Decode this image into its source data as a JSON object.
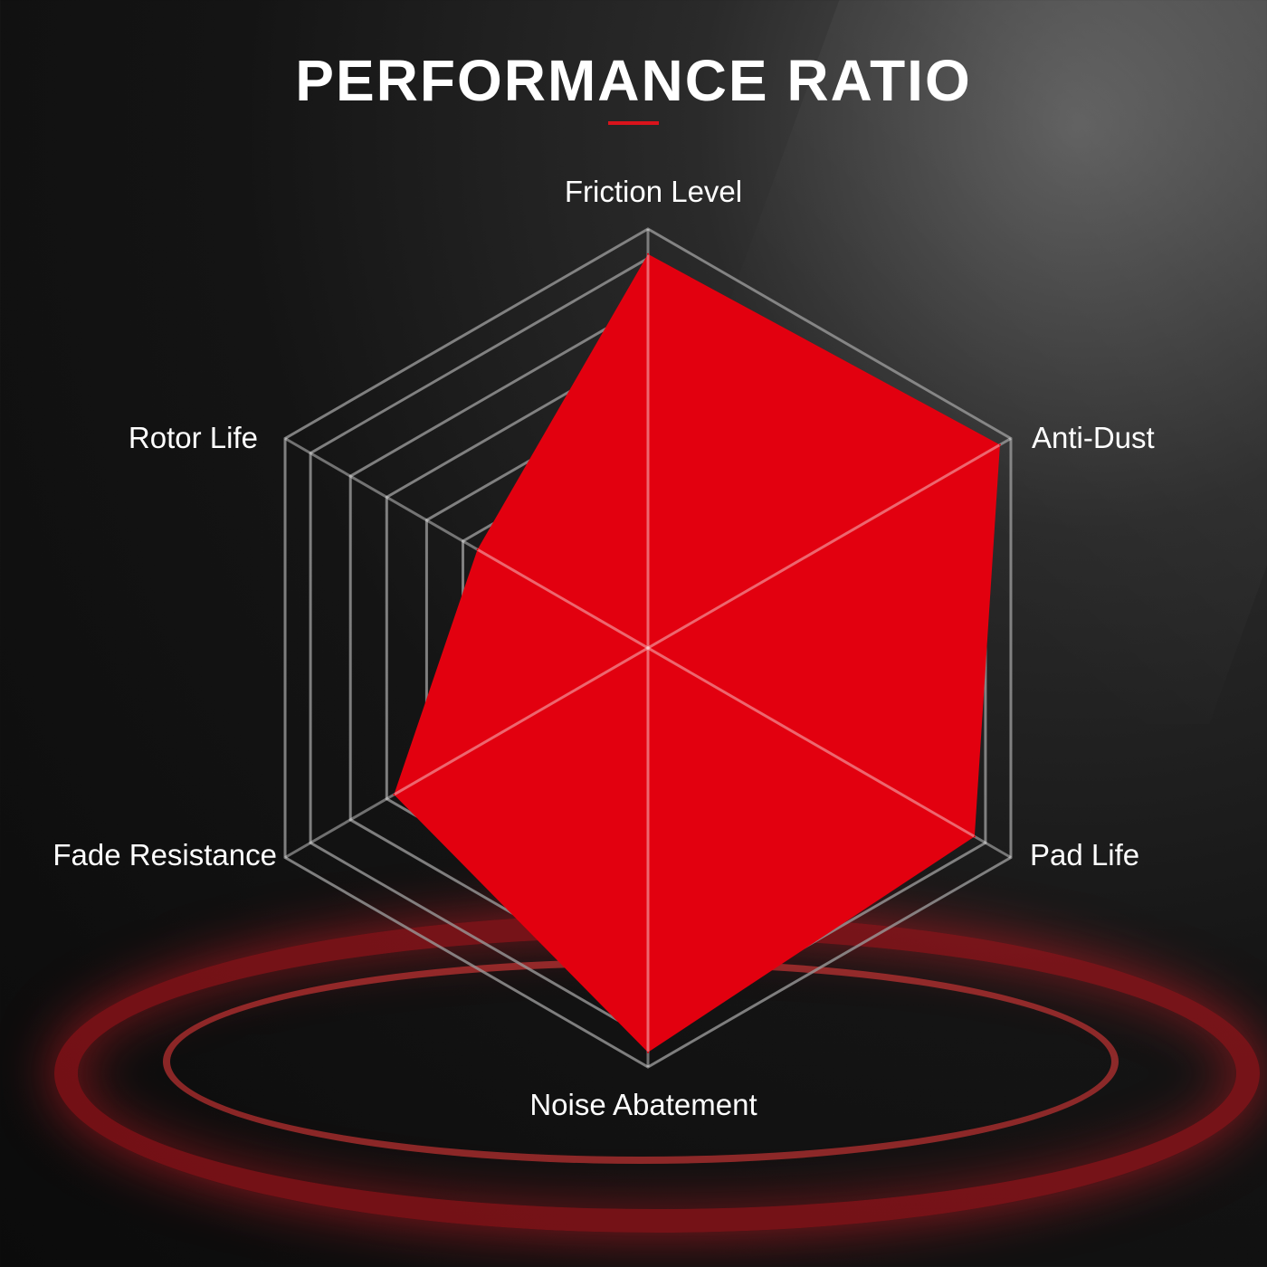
{
  "title": "PERFORMANCE RATIO",
  "colors": {
    "fill": "#e2000f",
    "grid": "#9a9a9a",
    "accent": "#d9131b",
    "background": "#121212"
  },
  "chart_data": {
    "type": "radar",
    "title": "PERFORMANCE RATIO",
    "axes": [
      "Friction Level",
      "Anti-Dust",
      "Pad Life",
      "Noise Abatement",
      "Fade Resistance",
      "Rotor Life"
    ],
    "values": [
      0.94,
      0.97,
      0.9,
      0.965,
      0.7,
      0.47
    ],
    "range": [
      0,
      1
    ],
    "grid": true,
    "grid_rings": 6
  }
}
